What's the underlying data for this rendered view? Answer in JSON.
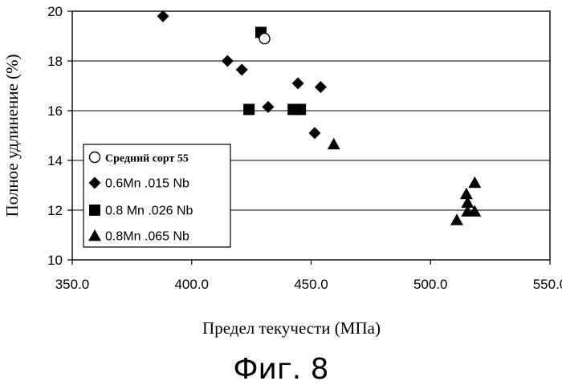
{
  "chart_data": {
    "type": "scatter",
    "xlabel": "Предел текучести (МПа)",
    "ylabel": "Полное удлинение (%)",
    "xlim": [
      350,
      550
    ],
    "ylim": [
      10,
      20
    ],
    "x_ticks": [
      "350.0",
      "400.0",
      "450.0",
      "500.0",
      "550.0"
    ],
    "x_tick_values": [
      350,
      400,
      450,
      500,
      550
    ],
    "y_ticks": [
      "10",
      "12",
      "14",
      "16",
      "18",
      "20"
    ],
    "y_tick_values": [
      10,
      12,
      14,
      16,
      18,
      20
    ],
    "grid": "horizontal",
    "legend_position": "bottom-left",
    "series": [
      {
        "name": "Средний сорт 55",
        "marker": "circle-open",
        "points": [
          [
            430.5,
            18.9
          ]
        ]
      },
      {
        "name": "0.6Mn .015 Nb",
        "marker": "diamond",
        "points": [
          [
            388,
            19.8
          ],
          [
            415,
            18.0
          ],
          [
            421,
            17.65
          ],
          [
            432,
            16.15
          ],
          [
            444.5,
            17.1
          ],
          [
            451.5,
            15.1
          ],
          [
            454,
            16.95
          ]
        ]
      },
      {
        "name": "0.8 Mn .026 Nb",
        "marker": "square",
        "points": [
          [
            429,
            19.15
          ],
          [
            424,
            16.05
          ],
          [
            442.5,
            16.05
          ],
          [
            445.5,
            16.05
          ]
        ]
      },
      {
        "name": "0.8Mn .065 Nb",
        "marker": "triangle",
        "points": [
          [
            459.5,
            14.65
          ],
          [
            511,
            11.6
          ],
          [
            515,
            12.65
          ],
          [
            515.5,
            12.3
          ],
          [
            515.5,
            11.95
          ],
          [
            518.5,
            13.1
          ],
          [
            518.5,
            11.95
          ]
        ]
      }
    ]
  },
  "caption": "Фиг. 8"
}
